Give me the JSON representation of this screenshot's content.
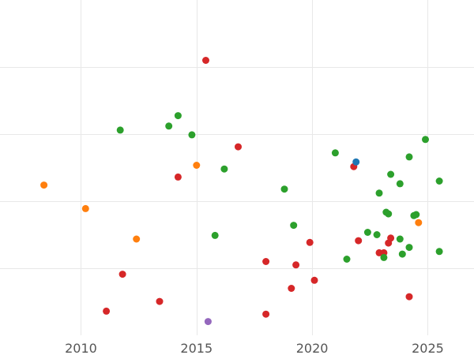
{
  "chart_data": {
    "type": "scatter",
    "title": "",
    "xlabel": "",
    "ylabel": "",
    "xlim": [
      2006.5,
      2027.0
    ],
    "ylim": [
      0,
      1
    ],
    "x_ticks": [
      2010,
      2015,
      2020,
      2025
    ],
    "x_tick_labels": [
      "2010",
      "2015",
      "2020",
      "2025"
    ],
    "y_grid_values": [
      0.2,
      0.4,
      0.6,
      0.8
    ],
    "y_tick_labels_shown": false,
    "grid": true,
    "legend": "none",
    "colors": {
      "green": "#2ca02c",
      "red": "#d62728",
      "orange": "#ff7f0e",
      "blue": "#1f77b4",
      "purple": "#9467bd"
    },
    "points": [
      {
        "x": 2008.4,
        "y": 0.448,
        "color": "orange"
      },
      {
        "x": 2010.2,
        "y": 0.378,
        "color": "orange"
      },
      {
        "x": 2011.1,
        "y": 0.072,
        "color": "red"
      },
      {
        "x": 2011.7,
        "y": 0.612,
        "color": "green"
      },
      {
        "x": 2011.8,
        "y": 0.182,
        "color": "red"
      },
      {
        "x": 2012.4,
        "y": 0.287,
        "color": "orange"
      },
      {
        "x": 2013.4,
        "y": 0.101,
        "color": "red"
      },
      {
        "x": 2013.8,
        "y": 0.624,
        "color": "green"
      },
      {
        "x": 2014.2,
        "y": 0.655,
        "color": "green"
      },
      {
        "x": 2014.2,
        "y": 0.472,
        "color": "red"
      },
      {
        "x": 2014.8,
        "y": 0.598,
        "color": "green"
      },
      {
        "x": 2015.0,
        "y": 0.507,
        "color": "orange"
      },
      {
        "x": 2015.4,
        "y": 0.82,
        "color": "red"
      },
      {
        "x": 2015.5,
        "y": 0.041,
        "color": "purple"
      },
      {
        "x": 2015.8,
        "y": 0.298,
        "color": "green"
      },
      {
        "x": 2016.2,
        "y": 0.496,
        "color": "green"
      },
      {
        "x": 2016.8,
        "y": 0.562,
        "color": "red"
      },
      {
        "x": 2018.0,
        "y": 0.22,
        "color": "red"
      },
      {
        "x": 2018.0,
        "y": 0.063,
        "color": "red"
      },
      {
        "x": 2018.8,
        "y": 0.436,
        "color": "green"
      },
      {
        "x": 2019.1,
        "y": 0.14,
        "color": "red"
      },
      {
        "x": 2019.2,
        "y": 0.328,
        "color": "green"
      },
      {
        "x": 2019.3,
        "y": 0.21,
        "color": "red"
      },
      {
        "x": 2019.9,
        "y": 0.277,
        "color": "red"
      },
      {
        "x": 2020.1,
        "y": 0.164,
        "color": "red"
      },
      {
        "x": 2021.0,
        "y": 0.544,
        "color": "green"
      },
      {
        "x": 2021.5,
        "y": 0.227,
        "color": "green"
      },
      {
        "x": 2021.8,
        "y": 0.503,
        "color": "red"
      },
      {
        "x": 2021.9,
        "y": 0.517,
        "color": "blue"
      },
      {
        "x": 2022.0,
        "y": 0.282,
        "color": "red"
      },
      {
        "x": 2022.4,
        "y": 0.307,
        "color": "green"
      },
      {
        "x": 2022.8,
        "y": 0.3,
        "color": "green"
      },
      {
        "x": 2022.9,
        "y": 0.424,
        "color": "green"
      },
      {
        "x": 2022.9,
        "y": 0.246,
        "color": "red"
      },
      {
        "x": 2023.1,
        "y": 0.246,
        "color": "red"
      },
      {
        "x": 2023.1,
        "y": 0.232,
        "color": "green"
      },
      {
        "x": 2023.2,
        "y": 0.367,
        "color": "green"
      },
      {
        "x": 2023.3,
        "y": 0.362,
        "color": "green"
      },
      {
        "x": 2023.3,
        "y": 0.275,
        "color": "red"
      },
      {
        "x": 2023.4,
        "y": 0.29,
        "color": "red"
      },
      {
        "x": 2023.4,
        "y": 0.48,
        "color": "green"
      },
      {
        "x": 2023.8,
        "y": 0.452,
        "color": "green"
      },
      {
        "x": 2023.8,
        "y": 0.287,
        "color": "green"
      },
      {
        "x": 2023.9,
        "y": 0.242,
        "color": "green"
      },
      {
        "x": 2024.2,
        "y": 0.532,
        "color": "green"
      },
      {
        "x": 2024.2,
        "y": 0.262,
        "color": "green"
      },
      {
        "x": 2024.2,
        "y": 0.115,
        "color": "red"
      },
      {
        "x": 2024.4,
        "y": 0.357,
        "color": "green"
      },
      {
        "x": 2024.5,
        "y": 0.36,
        "color": "green"
      },
      {
        "x": 2024.6,
        "y": 0.336,
        "color": "orange"
      },
      {
        "x": 2024.9,
        "y": 0.584,
        "color": "green"
      },
      {
        "x": 2025.5,
        "y": 0.25,
        "color": "green"
      },
      {
        "x": 2025.5,
        "y": 0.46,
        "color": "green"
      }
    ]
  }
}
